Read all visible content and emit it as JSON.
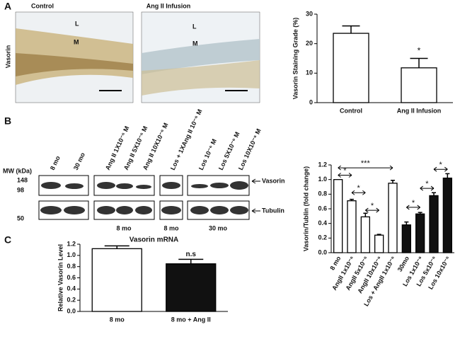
{
  "panels": {
    "a": "A",
    "b": "B",
    "c": "C"
  },
  "histology": {
    "row_label": "Vasorin",
    "images": [
      {
        "title": "Control",
        "labels": [
          "L",
          "M"
        ]
      },
      {
        "title": "Ang II Infusion",
        "labels": [
          "L",
          "M"
        ]
      }
    ]
  },
  "blot": {
    "mw_label": "MW (kDa)",
    "mw_markers": [
      "148",
      "98",
      "50"
    ],
    "lanes": [
      "8 mo",
      "30 mo",
      "Ang II 1X10⁻⁶ M",
      "Ang II 5X10⁻⁶ M",
      "Ang II 10X10⁻⁶ M",
      "Los + 1XAng II 10⁻⁶ M",
      "Los 10⁻⁶ M",
      "Los 5X10⁻⁶ M",
      "Los 10X10⁻⁶ M"
    ],
    "bands": [
      "Vasorin",
      "Tubulin"
    ],
    "groups": [
      "8 mo",
      "8 mo",
      "30 mo"
    ]
  },
  "chart_data": [
    {
      "type": "bar",
      "ylabel": "Vasorin Staining Grade (%)",
      "categories": [
        "Control",
        "Ang II Infusion"
      ],
      "values": [
        23.5,
        11.8
      ],
      "errors": [
        2.5,
        3.2
      ],
      "bar_colors": [
        "#ffffff",
        "#ffffff"
      ],
      "ylim": [
        0,
        30
      ],
      "yticks": [
        0,
        10,
        20,
        30
      ],
      "annotations": [
        "*"
      ]
    },
    {
      "type": "bar",
      "ylabel": "Vasorin/Tublin (fold change)",
      "categories": [
        "8 mo",
        "AngII 1x10⁻⁶",
        "AngII 5x10⁻⁶",
        "AngII 10x10⁻⁶",
        "Los + AngII 1x10⁻⁶",
        "30mo",
        "Los 1x10⁻⁶",
        "Los 5x10⁻⁶",
        "Los 10x10⁻⁶"
      ],
      "values": [
        1.0,
        0.71,
        0.49,
        0.24,
        0.95,
        0.38,
        0.53,
        0.78,
        1.02
      ],
      "errors": [
        0.0,
        0.02,
        0.05,
        0.01,
        0.04,
        0.04,
        0.02,
        0.04,
        0.06
      ],
      "bar_colors": [
        "#ffffff",
        "#ffffff",
        "#ffffff",
        "#ffffff",
        "#ffffff",
        "#111111",
        "#111111",
        "#111111",
        "#111111"
      ],
      "ylim": [
        0,
        1.2
      ],
      "yticks": [
        {
          "value": 0,
          "label": "0.0"
        },
        0.2,
        0.4,
        0.6,
        0.8,
        {
          "value": 1,
          "label": "1.0"
        },
        1.2
      ],
      "annotations": [
        "*",
        "*",
        "*",
        "***",
        "*",
        "*",
        "*"
      ]
    },
    {
      "type": "bar",
      "title": "Vasorin mRNA",
      "ylabel": "Relative Vasorin Level",
      "categories": [
        "8 mo",
        "8 mo + Ang II"
      ],
      "values": [
        1.12,
        0.85
      ],
      "errors": [
        0.05,
        0.08
      ],
      "bar_colors": [
        "#ffffff",
        "#111111"
      ],
      "ylim": [
        0,
        1.2
      ],
      "yticks": [
        {
          "value": 0,
          "label": "0.0"
        },
        0.2,
        0.4,
        0.6,
        0.8,
        {
          "value": 1,
          "label": "1.0"
        },
        1.2
      ],
      "annotations": [
        "n.s"
      ]
    }
  ]
}
